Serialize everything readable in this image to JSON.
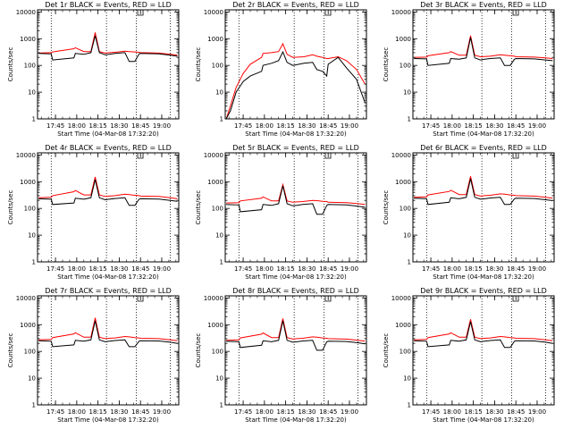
{
  "colors": {
    "events": "#000000",
    "lld": "#ff0000",
    "frame": "#000000"
  },
  "shared": {
    "ylabel": "Counts/sec",
    "xlabel": "Start Time (04-Mar-08 17:32:20)",
    "xticks": [
      "17:45",
      "18:00",
      "18:15",
      "18:30",
      "18:45",
      "19:00"
    ],
    "yticks": [
      "1",
      "10",
      "100",
      "1000",
      "10000"
    ],
    "yscale": "log",
    "ylim": [
      1,
      12000
    ],
    "xlim": [
      "17:32:20",
      "19:12"
    ],
    "vlines": [
      "17:42",
      "18:21",
      "18:42",
      "19:06"
    ]
  },
  "chart_data": [
    {
      "type": "line",
      "title": "Det 1r BLACK = Events, RED = LLD",
      "x": [
        "17:33",
        "17:42",
        "17:43",
        "17:58",
        "17:59",
        "18:05",
        "18:10",
        "18:13",
        "18:16",
        "18:20",
        "18:23",
        "18:27",
        "18:34",
        "18:37",
        "18:41",
        "18:44",
        "18:45",
        "18:58",
        "19:06",
        "19:11"
      ],
      "series": [
        {
          "name": "BLACK = Events",
          "values": [
            280,
            270,
            160,
            190,
            280,
            260,
            300,
            1300,
            300,
            250,
            260,
            280,
            300,
            140,
            140,
            270,
            280,
            270,
            240,
            220
          ]
        },
        {
          "name": "RED = LLD",
          "values": [
            290,
            300,
            320,
            420,
            460,
            330,
            330,
            1700,
            330,
            290,
            300,
            310,
            340,
            330,
            320,
            310,
            300,
            290,
            260,
            240
          ]
        }
      ]
    },
    {
      "type": "line",
      "title": "Det 2r BLACK = Events, RED = LLD",
      "x": [
        "17:33",
        "17:36",
        "17:40",
        "17:45",
        "17:50",
        "17:58",
        "17:59",
        "18:05",
        "18:10",
        "18:13",
        "18:16",
        "18:20",
        "18:28",
        "18:34",
        "18:37",
        "18:41",
        "18:44",
        "18:45",
        "18:52",
        "18:58",
        "19:05",
        "19:11"
      ],
      "series": [
        {
          "name": "BLACK = Events",
          "values": [
            1,
            2,
            10,
            25,
            40,
            60,
            100,
            120,
            150,
            320,
            130,
            100,
            120,
            130,
            70,
            60,
            40,
            110,
            200,
            80,
            30,
            4
          ]
        },
        {
          "name": "RED = LLD",
          "values": [
            1,
            3,
            15,
            50,
            110,
            200,
            280,
            300,
            330,
            650,
            260,
            200,
            210,
            250,
            220,
            200,
            180,
            180,
            210,
            150,
            70,
            20
          ]
        }
      ]
    },
    {
      "type": "line",
      "title": "Det 3r BLACK = Events, RED = LLD",
      "x": [
        "17:33",
        "17:42",
        "17:43",
        "17:58",
        "17:59",
        "18:05",
        "18:10",
        "18:13",
        "18:16",
        "18:20",
        "18:23",
        "18:27",
        "18:34",
        "18:37",
        "18:41",
        "18:44",
        "18:45",
        "18:58",
        "19:06",
        "19:11"
      ],
      "series": [
        {
          "name": "BLACK = Events",
          "values": [
            180,
            175,
            100,
            120,
            180,
            170,
            190,
            1100,
            190,
            160,
            170,
            180,
            190,
            100,
            100,
            170,
            180,
            175,
            160,
            150
          ]
        },
        {
          "name": "RED = LLD",
          "values": [
            200,
            205,
            230,
            300,
            330,
            240,
            240,
            1300,
            240,
            210,
            215,
            220,
            250,
            240,
            230,
            220,
            210,
            205,
            190,
            180
          ]
        }
      ]
    },
    {
      "type": "line",
      "title": "Det 4r BLACK = Events, RED = LLD",
      "x": [
        "17:33",
        "17:42",
        "17:43",
        "17:58",
        "17:59",
        "18:05",
        "18:10",
        "18:13",
        "18:16",
        "18:20",
        "18:23",
        "18:27",
        "18:34",
        "18:37",
        "18:41",
        "18:44",
        "18:45",
        "18:58",
        "19:06",
        "19:11"
      ],
      "series": [
        {
          "name": "BLACK = Events",
          "values": [
            230,
            220,
            140,
            160,
            240,
            220,
            250,
            1200,
            250,
            210,
            220,
            235,
            250,
            130,
            130,
            220,
            230,
            225,
            200,
            185
          ]
        },
        {
          "name": "RED = LLD",
          "values": [
            250,
            260,
            300,
            420,
            470,
            320,
            320,
            1500,
            320,
            280,
            290,
            300,
            340,
            330,
            310,
            300,
            290,
            280,
            250,
            230
          ]
        }
      ]
    },
    {
      "type": "line",
      "title": "Det 5r BLACK = Events, RED = LLD",
      "x": [
        "17:33",
        "17:42",
        "17:43",
        "17:58",
        "17:59",
        "18:05",
        "18:10",
        "18:13",
        "18:16",
        "18:20",
        "18:23",
        "18:27",
        "18:34",
        "18:37",
        "18:41",
        "18:44",
        "18:45",
        "18:58",
        "19:06",
        "19:11"
      ],
      "series": [
        {
          "name": "BLACK = Events",
          "values": [
            140,
            135,
            75,
            90,
            140,
            130,
            150,
            700,
            150,
            125,
            130,
            140,
            150,
            60,
            60,
            130,
            140,
            135,
            120,
            110
          ]
        },
        {
          "name": "RED = LLD",
          "values": [
            160,
            165,
            190,
            240,
            270,
            190,
            190,
            780,
            190,
            170,
            175,
            180,
            200,
            195,
            185,
            180,
            170,
            165,
            150,
            140
          ]
        }
      ]
    },
    {
      "type": "line",
      "title": "Det 6r BLACK = Events, RED = LLD",
      "x": [
        "17:33",
        "17:42",
        "17:43",
        "17:58",
        "17:59",
        "18:05",
        "18:10",
        "18:13",
        "18:16",
        "18:20",
        "18:23",
        "18:27",
        "18:34",
        "18:37",
        "18:41",
        "18:44",
        "18:45",
        "18:58",
        "19:06",
        "19:11"
      ],
      "series": [
        {
          "name": "BLACK = Events",
          "values": [
            240,
            230,
            140,
            170,
            250,
            230,
            260,
            1300,
            260,
            220,
            230,
            245,
            260,
            140,
            140,
            230,
            240,
            235,
            210,
            195
          ]
        },
        {
          "name": "RED = LLD",
          "values": [
            260,
            270,
            320,
            430,
            480,
            330,
            330,
            1600,
            330,
            290,
            300,
            310,
            350,
            340,
            320,
            310,
            300,
            290,
            260,
            240
          ]
        }
      ]
    },
    {
      "type": "line",
      "title": "Det 7r BLACK = Events, RED = LLD",
      "x": [
        "17:33",
        "17:42",
        "17:43",
        "17:58",
        "17:59",
        "18:05",
        "18:10",
        "18:13",
        "18:16",
        "18:20",
        "18:23",
        "18:27",
        "18:34",
        "18:37",
        "18:41",
        "18:44",
        "18:45",
        "18:58",
        "19:06",
        "19:11"
      ],
      "series": [
        {
          "name": "BLACK = Events",
          "values": [
            250,
            240,
            150,
            175,
            260,
            240,
            270,
            1400,
            270,
            230,
            240,
            255,
            270,
            150,
            150,
            240,
            250,
            245,
            220,
            200
          ]
        },
        {
          "name": "RED = LLD",
          "values": [
            270,
            280,
            330,
            450,
            500,
            340,
            340,
            1800,
            340,
            300,
            310,
            320,
            360,
            350,
            330,
            320,
            310,
            300,
            270,
            250
          ]
        }
      ]
    },
    {
      "type": "line",
      "title": "Det 8r BLACK = Events, RED = LLD",
      "x": [
        "17:33",
        "17:42",
        "17:43",
        "17:58",
        "17:59",
        "18:05",
        "18:10",
        "18:13",
        "18:16",
        "18:20",
        "18:23",
        "18:27",
        "18:34",
        "18:37",
        "18:41",
        "18:44",
        "18:45",
        "18:58",
        "19:06",
        "19:11"
      ],
      "series": [
        {
          "name": "BLACK = Events",
          "values": [
            240,
            230,
            140,
            170,
            250,
            230,
            260,
            1400,
            260,
            220,
            230,
            245,
            260,
            110,
            110,
            230,
            240,
            235,
            210,
            190
          ]
        },
        {
          "name": "RED = LLD",
          "values": [
            260,
            270,
            320,
            440,
            490,
            330,
            330,
            1700,
            330,
            290,
            300,
            310,
            350,
            340,
            320,
            310,
            300,
            290,
            260,
            240
          ]
        }
      ]
    },
    {
      "type": "line",
      "title": "Det 9r BLACK = Events, RED = LLD",
      "x": [
        "17:33",
        "17:42",
        "17:43",
        "17:58",
        "17:59",
        "18:05",
        "18:10",
        "18:13",
        "18:16",
        "18:20",
        "18:23",
        "18:27",
        "18:34",
        "18:37",
        "18:41",
        "18:44",
        "18:45",
        "18:58",
        "19:06",
        "19:11"
      ],
      "series": [
        {
          "name": "BLACK = Events",
          "values": [
            250,
            240,
            150,
            175,
            260,
            240,
            270,
            1300,
            270,
            230,
            240,
            255,
            270,
            140,
            140,
            240,
            250,
            245,
            220,
            200
          ]
        },
        {
          "name": "RED = LLD",
          "values": [
            270,
            280,
            330,
            450,
            500,
            340,
            340,
            1600,
            340,
            300,
            310,
            320,
            360,
            350,
            330,
            320,
            310,
            300,
            270,
            250
          ]
        }
      ]
    }
  ]
}
